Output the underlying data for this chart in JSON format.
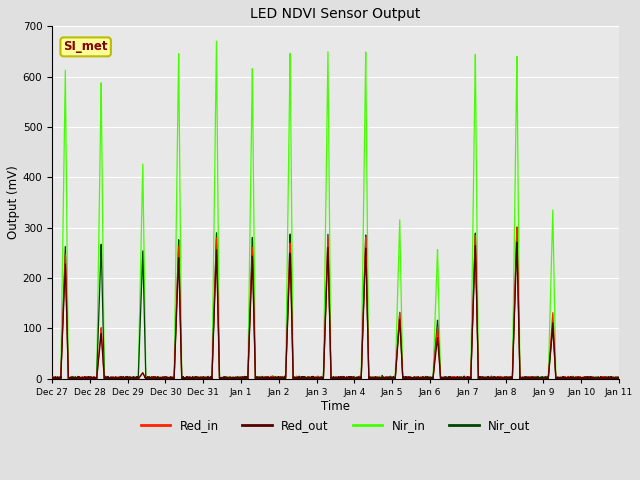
{
  "title": "LED NDVI Sensor Output",
  "xlabel": "Time",
  "ylabel": "Output (mV)",
  "ylim": [
    0,
    700
  ],
  "xlim_days": 15,
  "fig_facecolor": "#e0e0e0",
  "plot_facecolor": "#e8e8e8",
  "grid_color": "#ffffff",
  "annotation_text": "SI_met",
  "annotation_bg": "#ffff99",
  "annotation_border": "#bbbb00",
  "annotation_text_color": "#880000",
  "series": {
    "Red_in": {
      "color": "#ff2200",
      "lw": 0.9,
      "alpha": 1.0
    },
    "Red_out": {
      "color": "#550000",
      "lw": 0.9,
      "alpha": 1.0
    },
    "Nir_in": {
      "color": "#44ff00",
      "lw": 0.9,
      "alpha": 1.0
    },
    "Nir_out": {
      "color": "#004400",
      "lw": 0.9,
      "alpha": 1.0
    }
  },
  "tick_labels": [
    "Dec 27",
    "Dec 28",
    "Dec 29",
    "Dec 30",
    "Dec 31",
    "Jan 1",
    "Jan 2",
    "Jan 3",
    "Jan 4",
    "Jan 5",
    "Jan 6",
    "Jan 7",
    "Jan 8",
    "Jan 9",
    "Jan 10",
    "Jan 11"
  ],
  "tick_positions": [
    0,
    1,
    2,
    3,
    4,
    5,
    6,
    7,
    8,
    9,
    10,
    11,
    12,
    13,
    14,
    15
  ],
  "events": [
    {
      "day": 0.35,
      "red_in": 250,
      "red_out": 230,
      "nir_in": 618,
      "nir_out": 265
    },
    {
      "day": 1.3,
      "red_in": 102,
      "red_out": 90,
      "nir_in": 590,
      "nir_out": 268
    },
    {
      "day": 2.4,
      "red_in": 12,
      "red_out": 12,
      "nir_in": 428,
      "nir_out": 255
    },
    {
      "day": 3.35,
      "red_in": 265,
      "red_out": 242,
      "nir_in": 650,
      "nir_out": 278
    },
    {
      "day": 4.35,
      "red_in": 282,
      "red_out": 258,
      "nir_in": 675,
      "nir_out": 292
    },
    {
      "day": 5.3,
      "red_in": 262,
      "red_out": 245,
      "nir_in": 619,
      "nir_out": 282
    },
    {
      "day": 6.3,
      "red_in": 272,
      "red_out": 252,
      "nir_in": 652,
      "nir_out": 290
    },
    {
      "day": 7.3,
      "red_in": 282,
      "red_out": 262,
      "nir_in": 652,
      "nir_out": 288
    },
    {
      "day": 8.3,
      "red_in": 282,
      "red_out": 260,
      "nir_in": 650,
      "nir_out": 286
    },
    {
      "day": 9.2,
      "red_in": 132,
      "red_out": 118,
      "nir_in": 316,
      "nir_out": 132
    },
    {
      "day": 10.2,
      "red_in": 103,
      "red_out": 82,
      "nir_in": 258,
      "nir_out": 117
    },
    {
      "day": 11.2,
      "red_in": 287,
      "red_out": 267,
      "nir_in": 650,
      "nir_out": 292
    },
    {
      "day": 12.3,
      "red_in": 302,
      "red_out": 272,
      "nir_in": 642,
      "nir_out": 302
    },
    {
      "day": 13.25,
      "red_in": 132,
      "red_out": 112,
      "nir_in": 337,
      "nir_out": 102
    }
  ]
}
